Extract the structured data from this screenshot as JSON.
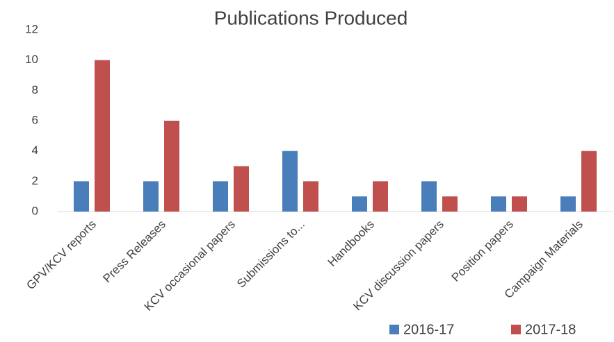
{
  "chart_data": {
    "type": "bar",
    "title": "Publications Produced",
    "categories": [
      "GPV/KCV reports",
      "Press Releases",
      "KCV occasional papers",
      "Submissions to...",
      "Handbooks",
      "KCV discussion papers",
      "Position papers",
      "Campaign Materials"
    ],
    "series": [
      {
        "name": "2016-17",
        "color": "#4a7ebb",
        "values": [
          2,
          2,
          2,
          4,
          1,
          2,
          1,
          1
        ]
      },
      {
        "name": "2017-18",
        "color": "#c0504d",
        "values": [
          10,
          6,
          3,
          2,
          2,
          1,
          1,
          4
        ]
      }
    ],
    "ylim": [
      0,
      12
    ],
    "yticks": [
      0,
      2,
      4,
      6,
      8,
      10,
      12
    ],
    "grid": false,
    "legend": "bottom-right"
  }
}
